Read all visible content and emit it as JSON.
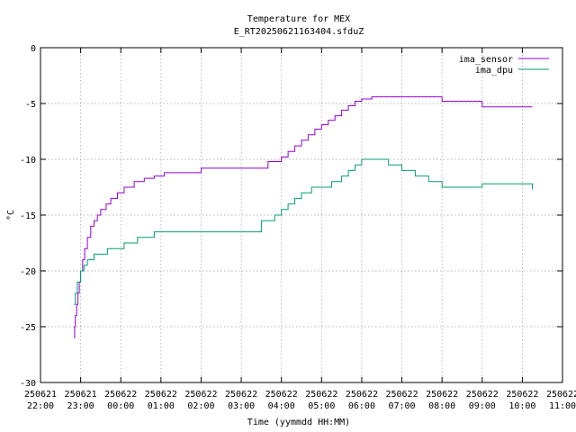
{
  "chart_data": {
    "type": "line",
    "title": "Temperature for MEX",
    "subtitle": "E_RT20250621163404.sfduZ",
    "xlabel": "Time (yymmdd HH:MM)",
    "ylabel": "°C",
    "xlim": [
      "2025-06-21 22:00",
      "2025-06-22 11:00"
    ],
    "ylim": [
      -30,
      0
    ],
    "grid": true,
    "legend_position": "top-right",
    "x_ticks": [
      {
        "line1": "250621",
        "line2": "22:00"
      },
      {
        "line1": "250621",
        "line2": "23:00"
      },
      {
        "line1": "250622",
        "line2": "00:00"
      },
      {
        "line1": "250622",
        "line2": "01:00"
      },
      {
        "line1": "250622",
        "line2": "02:00"
      },
      {
        "line1": "250622",
        "line2": "03:00"
      },
      {
        "line1": "250622",
        "line2": "04:00"
      },
      {
        "line1": "250622",
        "line2": "05:00"
      },
      {
        "line1": "250622",
        "line2": "06:00"
      },
      {
        "line1": "250622",
        "line2": "07:00"
      },
      {
        "line1": "250622",
        "line2": "08:00"
      },
      {
        "line1": "250622",
        "line2": "09:00"
      },
      {
        "line1": "250622",
        "line2": "10:00"
      },
      {
        "line1": "250622",
        "line2": "11:00"
      }
    ],
    "y_ticks": [
      "0",
      "-5",
      "-10",
      "-15",
      "-20",
      "-25",
      "-30"
    ],
    "series": [
      {
        "name": "ima_sensor",
        "color": "#9400d3",
        "x": [
          "2025-06-21 22:50",
          "2025-06-21 22:51",
          "2025-06-21 22:52",
          "2025-06-21 22:54",
          "2025-06-21 22:56",
          "2025-06-21 22:58",
          "2025-06-21 23:00",
          "2025-06-21 23:03",
          "2025-06-21 23:06",
          "2025-06-21 23:10",
          "2025-06-21 23:15",
          "2025-06-21 23:20",
          "2025-06-21 23:25",
          "2025-06-21 23:30",
          "2025-06-21 23:38",
          "2025-06-21 23:45",
          "2025-06-21 23:55",
          "2025-06-22 00:05",
          "2025-06-22 00:20",
          "2025-06-22 00:35",
          "2025-06-22 00:50",
          "2025-06-22 01:05",
          "2025-06-22 01:35",
          "2025-06-22 02:00",
          "2025-06-22 03:00",
          "2025-06-22 03:40",
          "2025-06-22 04:00",
          "2025-06-22 04:10",
          "2025-06-22 04:20",
          "2025-06-22 04:30",
          "2025-06-22 04:40",
          "2025-06-22 04:50",
          "2025-06-22 05:00",
          "2025-06-22 05:10",
          "2025-06-22 05:20",
          "2025-06-22 05:30",
          "2025-06-22 05:40",
          "2025-06-22 05:50",
          "2025-06-22 06:00",
          "2025-06-22 06:15",
          "2025-06-22 06:45",
          "2025-06-22 08:00",
          "2025-06-22 09:00",
          "2025-06-22 09:30",
          "2025-06-22 10:15"
        ],
        "values": [
          -26.0,
          -25.0,
          -24.0,
          -23.0,
          -22.0,
          -21.0,
          -20.0,
          -19.0,
          -18.0,
          -17.0,
          -16.0,
          -15.5,
          -15.0,
          -14.5,
          -14.0,
          -13.5,
          -13.0,
          -12.5,
          -12.0,
          -11.7,
          -11.5,
          -11.2,
          -11.2,
          -10.8,
          -10.8,
          -10.2,
          -9.8,
          -9.3,
          -8.8,
          -8.3,
          -7.8,
          -7.3,
          -6.9,
          -6.5,
          -6.1,
          -5.6,
          -5.2,
          -4.8,
          -4.6,
          -4.4,
          -4.4,
          -4.8,
          -5.3,
          -5.3,
          -5.3
        ]
      },
      {
        "name": "ima_dpu",
        "color": "#009e73",
        "x": [
          "2025-06-21 22:50",
          "2025-06-21 22:52",
          "2025-06-21 22:55",
          "2025-06-21 23:00",
          "2025-06-21 23:05",
          "2025-06-21 23:10",
          "2025-06-21 23:20",
          "2025-06-21 23:40",
          "2025-06-22 00:05",
          "2025-06-22 00:25",
          "2025-06-22 00:50",
          "2025-06-22 01:30",
          "2025-06-22 02:30",
          "2025-06-22 03:30",
          "2025-06-22 03:50",
          "2025-06-22 04:00",
          "2025-06-22 04:10",
          "2025-06-22 04:20",
          "2025-06-22 04:30",
          "2025-06-22 04:45",
          "2025-06-22 05:00",
          "2025-06-22 05:15",
          "2025-06-22 05:30",
          "2025-06-22 05:40",
          "2025-06-22 05:50",
          "2025-06-22 06:00",
          "2025-06-22 06:20",
          "2025-06-22 06:40",
          "2025-06-22 07:00",
          "2025-06-22 07:20",
          "2025-06-22 07:40",
          "2025-06-22 08:00",
          "2025-06-22 08:30",
          "2025-06-22 09:00",
          "2025-06-22 09:30",
          "2025-06-22 10:15"
        ],
        "values": [
          -23.0,
          -22.0,
          -21.0,
          -20.0,
          -19.5,
          -19.0,
          -18.5,
          -18.0,
          -17.5,
          -17.0,
          -16.5,
          -16.5,
          -16.5,
          -15.5,
          -15.0,
          -14.5,
          -14.0,
          -13.5,
          -13.0,
          -12.5,
          -12.5,
          -12.0,
          -11.5,
          -11.0,
          -10.5,
          -10.0,
          -10.0,
          -10.5,
          -11.0,
          -11.5,
          -12.0,
          -12.5,
          -12.5,
          -12.2,
          -12.2,
          -12.7
        ]
      }
    ]
  }
}
